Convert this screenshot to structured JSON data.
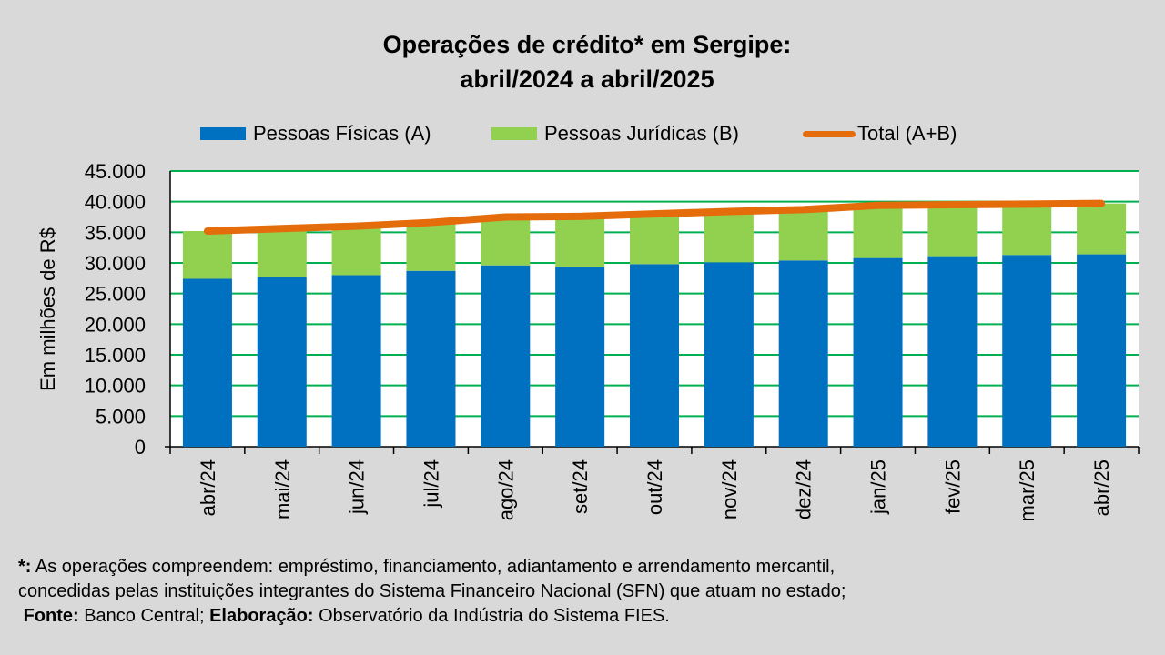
{
  "title_line1": "Operações de crédito* em Sergipe:",
  "title_line2": "abril/2024 a abril/2025",
  "colors": {
    "pf": "#0070c0",
    "pj": "#92d050",
    "total": "#e46c0a",
    "grid": "#00b050",
    "plot_bg": "#ffffff"
  },
  "chart_data": {
    "type": "bar",
    "stacked": true,
    "ylabel": "Em milhões de R$",
    "ylim": [
      0,
      45000
    ],
    "yticks": [
      "0",
      "5.000",
      "10.000",
      "15.000",
      "20.000",
      "25.000",
      "30.000",
      "35.000",
      "40.000",
      "45.000"
    ],
    "categories": [
      "abr/24",
      "mai/24",
      "jun/24",
      "jul/24",
      "ago/24",
      "set/24",
      "out/24",
      "nov/24",
      "dez/24",
      "jan/25",
      "fev/25",
      "mar/25",
      "abr/25"
    ],
    "series": [
      {
        "name": "Pessoas Físicas (A)",
        "type": "bar",
        "values": [
          27400,
          27700,
          28000,
          28700,
          29600,
          29400,
          29800,
          30100,
          30400,
          30800,
          31100,
          31300,
          31400
        ]
      },
      {
        "name": "Pessoas Jurídicas (B)",
        "type": "bar",
        "values": [
          7800,
          7900,
          8000,
          7900,
          7900,
          8200,
          8200,
          8300,
          8300,
          8600,
          8400,
          8300,
          8300
        ]
      },
      {
        "name": "Total (A+B)",
        "type": "line",
        "values": [
          35200,
          35600,
          36000,
          36600,
          37500,
          37600,
          38000,
          38400,
          38700,
          39400,
          39500,
          39600,
          39700
        ]
      }
    ],
    "legend_position": "top",
    "grid": true
  },
  "footnote": {
    "line1_marker": "*:",
    "line1_text": " As operações compreendem: empréstimo, financiamento, adiantamento e arrendamento mercantil,",
    "line2_text": "concedidas pelas instituições integrantes do Sistema Financeiro Nacional (SFN) que atuam no estado;",
    "source_label": "Fonte:",
    "source_text": " Banco Central; ",
    "elab_label": "Elaboração:",
    "elab_text": "  Observatório da Indústria do Sistema FIES."
  }
}
